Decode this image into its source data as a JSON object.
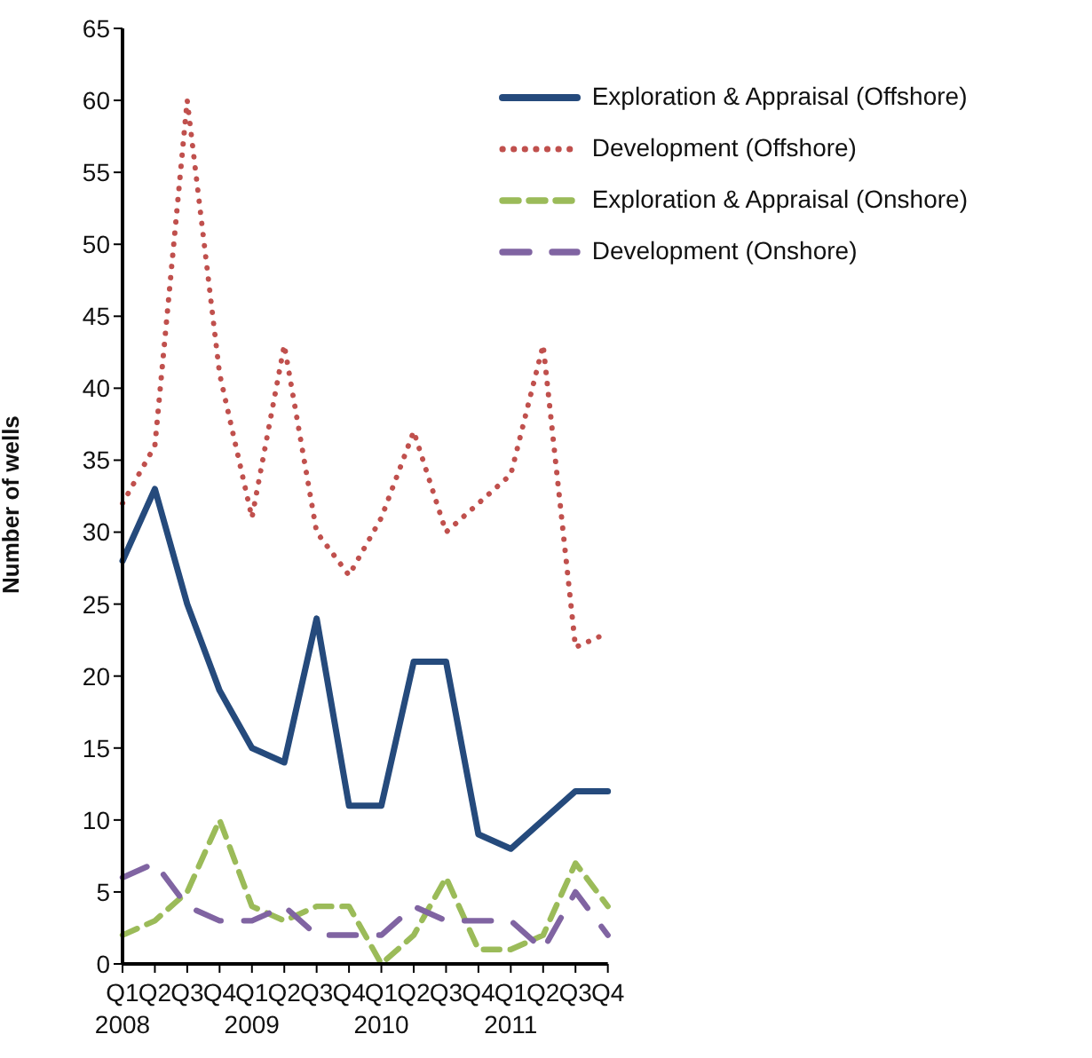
{
  "chart_data": {
    "type": "line",
    "ylabel": "Number of wells",
    "categories": [
      "Q1\n2008",
      "Q2",
      "Q3",
      "Q4",
      "Q1\n2009",
      "Q2",
      "Q3",
      "Q4",
      "Q1\n2010",
      "Q2",
      "Q3",
      "Q4",
      "Q1\n2011",
      "Q2",
      "Q3",
      "Q4"
    ],
    "series": [
      {
        "name": "Exploration & Appraisal (Offshore)",
        "color": "#254a7c",
        "line_style": "solid",
        "values": [
          28,
          33,
          25,
          19,
          15,
          14,
          24,
          11,
          11,
          21,
          21,
          9,
          8,
          10,
          12,
          12
        ]
      },
      {
        "name": "Development (Offshore)",
        "color": "#c0504d",
        "line_style": "dotted",
        "values": [
          32,
          36,
          60,
          41,
          31,
          43,
          30,
          27,
          31,
          37,
          30,
          32,
          34,
          43,
          22,
          23
        ]
      },
      {
        "name": "Exploration & Appraisal (Onshore)",
        "color": "#9bbb59",
        "line_style": "dashed",
        "values": [
          2,
          3,
          5,
          10,
          4,
          3,
          4,
          4,
          0,
          2,
          6,
          1,
          1,
          2,
          7,
          4
        ]
      },
      {
        "name": "Development (Onshore)",
        "color": "#8064a2",
        "line_style": "dashed",
        "values": [
          6,
          7,
          4,
          3,
          3,
          4,
          2,
          2,
          2,
          4,
          3,
          3,
          3,
          1,
          5,
          2
        ]
      }
    ],
    "ylim": [
      0,
      65
    ],
    "yticks": [
      0,
      5,
      10,
      15,
      20,
      25,
      30,
      35,
      40,
      45,
      50,
      55,
      60,
      65
    ],
    "grid": false,
    "legend": "top right"
  }
}
